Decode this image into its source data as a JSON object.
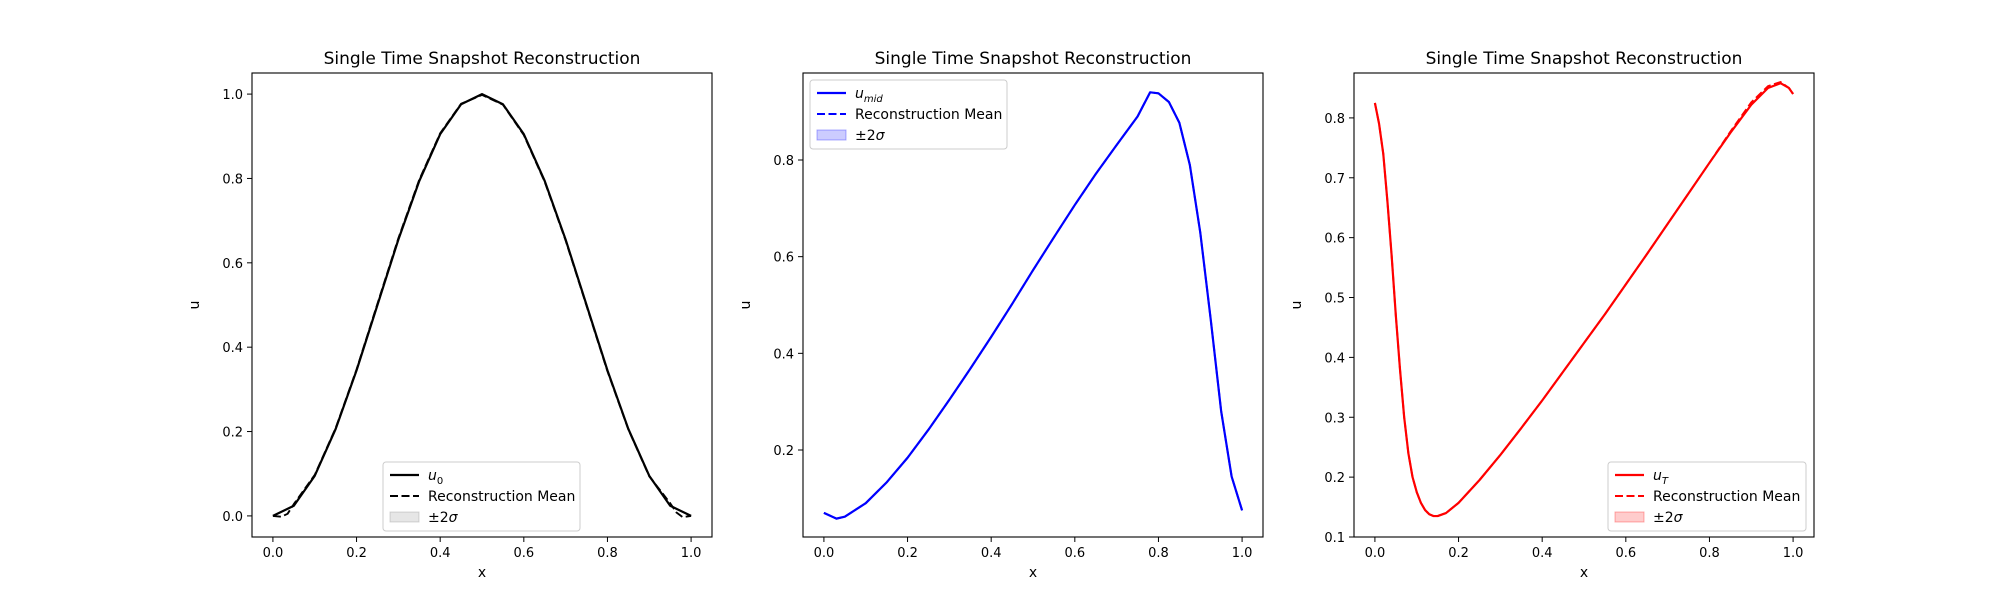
{
  "chart_data": [
    {
      "type": "line",
      "title": "Single Time Snapshot Reconstruction",
      "xlabel": "x",
      "ylabel": "u",
      "xlim": [
        -0.05,
        1.05
      ],
      "ylim": [
        -0.05,
        1.05
      ],
      "xticks": [
        0.0,
        0.2,
        0.4,
        0.6,
        0.8,
        1.0
      ],
      "xtick_labels": [
        "0.0",
        "0.2",
        "0.4",
        "0.6",
        "0.8",
        "1.0"
      ],
      "yticks": [
        0.0,
        0.2,
        0.4,
        0.6,
        0.8,
        1.0
      ],
      "ytick_labels": [
        "0.0",
        "0.2",
        "0.4",
        "0.6",
        "0.8",
        "1.0"
      ],
      "color": "#000000",
      "band_color": "#808080",
      "legend": {
        "loc": "lower center",
        "entries": [
          "u_0",
          "Reconstruction Mean",
          "±2σ"
        ]
      },
      "series": [
        {
          "name": "u_0",
          "style": "solid",
          "x": [
            0.0,
            0.05,
            0.1,
            0.15,
            0.2,
            0.25,
            0.3,
            0.35,
            0.4,
            0.45,
            0.5,
            0.55,
            0.6,
            0.65,
            0.7,
            0.75,
            0.8,
            0.85,
            0.9,
            0.95,
            1.0
          ],
          "y": [
            0.0,
            0.024,
            0.095,
            0.206,
            0.345,
            0.5,
            0.655,
            0.794,
            0.905,
            0.976,
            1.0,
            0.976,
            0.905,
            0.794,
            0.655,
            0.5,
            0.345,
            0.206,
            0.095,
            0.024,
            0.0
          ]
        },
        {
          "name": "Reconstruction Mean",
          "style": "dashed",
          "x": [
            0.0,
            0.02,
            0.035,
            0.05,
            0.1,
            0.15,
            0.2,
            0.25,
            0.3,
            0.35,
            0.4,
            0.45,
            0.5,
            0.55,
            0.6,
            0.65,
            0.7,
            0.75,
            0.8,
            0.85,
            0.9,
            0.95,
            0.965,
            0.98,
            1.0
          ],
          "y": [
            0.0,
            -0.002,
            0.005,
            0.028,
            0.097,
            0.208,
            0.347,
            0.503,
            0.658,
            0.797,
            0.907,
            0.977,
            0.998,
            0.975,
            0.903,
            0.792,
            0.653,
            0.498,
            0.343,
            0.205,
            0.094,
            0.03,
            0.008,
            -0.003,
            0.0
          ]
        }
      ]
    },
    {
      "type": "line",
      "title": "Single Time Snapshot Reconstruction",
      "xlabel": "x",
      "ylabel": "u",
      "xlim": [
        -0.05,
        1.05
      ],
      "ylim": [
        0.02,
        0.98
      ],
      "xticks": [
        0.0,
        0.2,
        0.4,
        0.6,
        0.8,
        1.0
      ],
      "xtick_labels": [
        "0.0",
        "0.2",
        "0.4",
        "0.6",
        "0.8",
        "1.0"
      ],
      "yticks": [
        0.2,
        0.4,
        0.6,
        0.8
      ],
      "ytick_labels": [
        "0.2",
        "0.4",
        "0.6",
        "0.8"
      ],
      "color": "#0000ff",
      "band_color": "#0000ff",
      "legend": {
        "loc": "upper left",
        "entries": [
          "u_mid",
          "Reconstruction Mean",
          "±2σ"
        ]
      },
      "series": [
        {
          "name": "u_mid",
          "style": "solid",
          "x": [
            0.0,
            0.03,
            0.05,
            0.1,
            0.15,
            0.2,
            0.25,
            0.3,
            0.35,
            0.4,
            0.45,
            0.5,
            0.55,
            0.6,
            0.65,
            0.7,
            0.75,
            0.78,
            0.8,
            0.825,
            0.85,
            0.875,
            0.9,
            0.925,
            0.95,
            0.975,
            1.0
          ],
          "y": [
            0.07,
            0.058,
            0.062,
            0.09,
            0.133,
            0.184,
            0.242,
            0.304,
            0.368,
            0.434,
            0.502,
            0.572,
            0.64,
            0.707,
            0.771,
            0.831,
            0.89,
            0.94,
            0.938,
            0.92,
            0.877,
            0.79,
            0.65,
            0.47,
            0.28,
            0.145,
            0.075
          ]
        },
        {
          "name": "Reconstruction Mean",
          "style": "dashed",
          "x": [
            0.0,
            0.03,
            0.05,
            0.1,
            0.15,
            0.2,
            0.25,
            0.3,
            0.35,
            0.4,
            0.45,
            0.5,
            0.55,
            0.6,
            0.65,
            0.7,
            0.75,
            0.78,
            0.8,
            0.825,
            0.85,
            0.875,
            0.9,
            0.925,
            0.95,
            0.975,
            1.0
          ],
          "y": [
            0.07,
            0.058,
            0.062,
            0.09,
            0.133,
            0.184,
            0.242,
            0.304,
            0.368,
            0.434,
            0.502,
            0.572,
            0.64,
            0.707,
            0.771,
            0.831,
            0.89,
            0.94,
            0.938,
            0.92,
            0.877,
            0.79,
            0.65,
            0.47,
            0.28,
            0.145,
            0.075
          ]
        }
      ]
    },
    {
      "type": "line",
      "title": "Single Time Snapshot Reconstruction",
      "xlabel": "x",
      "ylabel": "u",
      "xlim": [
        -0.05,
        1.05
      ],
      "ylim": [
        0.1,
        0.875
      ],
      "xticks": [
        0.0,
        0.2,
        0.4,
        0.6,
        0.8,
        1.0
      ],
      "xtick_labels": [
        "0.0",
        "0.2",
        "0.4",
        "0.6",
        "0.8",
        "1.0"
      ],
      "yticks": [
        0.1,
        0.2,
        0.3,
        0.4,
        0.5,
        0.6,
        0.7,
        0.8
      ],
      "ytick_labels": [
        "0.1",
        "0.2",
        "0.3",
        "0.4",
        "0.5",
        "0.6",
        "0.7",
        "0.8"
      ],
      "color": "#ff0000",
      "band_color": "#ff0000",
      "legend": {
        "loc": "lower right",
        "entries": [
          "u_T",
          "Reconstruction Mean",
          "±2σ"
        ]
      },
      "series": [
        {
          "name": "u_T",
          "style": "solid",
          "x": [
            0.0,
            0.01,
            0.02,
            0.03,
            0.04,
            0.05,
            0.06,
            0.07,
            0.08,
            0.09,
            0.1,
            0.11,
            0.12,
            0.13,
            0.14,
            0.15,
            0.17,
            0.2,
            0.25,
            0.3,
            0.35,
            0.4,
            0.45,
            0.5,
            0.55,
            0.6,
            0.65,
            0.7,
            0.75,
            0.8,
            0.85,
            0.9,
            0.94,
            0.97,
            0.99,
            1.0
          ],
          "y": [
            0.825,
            0.79,
            0.74,
            0.66,
            0.57,
            0.47,
            0.38,
            0.3,
            0.24,
            0.2,
            0.175,
            0.157,
            0.145,
            0.138,
            0.135,
            0.135,
            0.14,
            0.157,
            0.195,
            0.237,
            0.282,
            0.328,
            0.376,
            0.424,
            0.472,
            0.522,
            0.572,
            0.623,
            0.674,
            0.725,
            0.775,
            0.822,
            0.85,
            0.858,
            0.85,
            0.84
          ]
        },
        {
          "name": "Reconstruction Mean",
          "style": "dashed",
          "x": [
            0.0,
            0.01,
            0.02,
            0.03,
            0.04,
            0.05,
            0.06,
            0.07,
            0.08,
            0.09,
            0.1,
            0.11,
            0.12,
            0.13,
            0.14,
            0.15,
            0.17,
            0.2,
            0.25,
            0.3,
            0.35,
            0.4,
            0.45,
            0.5,
            0.55,
            0.6,
            0.65,
            0.7,
            0.75,
            0.8,
            0.85,
            0.9,
            0.94,
            0.97,
            0.99,
            1.0
          ],
          "y": [
            0.825,
            0.79,
            0.74,
            0.66,
            0.57,
            0.47,
            0.38,
            0.3,
            0.24,
            0.2,
            0.175,
            0.157,
            0.145,
            0.138,
            0.135,
            0.135,
            0.14,
            0.157,
            0.195,
            0.237,
            0.282,
            0.328,
            0.376,
            0.424,
            0.472,
            0.522,
            0.572,
            0.623,
            0.674,
            0.725,
            0.777,
            0.826,
            0.853,
            0.86,
            0.85,
            0.84
          ]
        }
      ]
    }
  ]
}
